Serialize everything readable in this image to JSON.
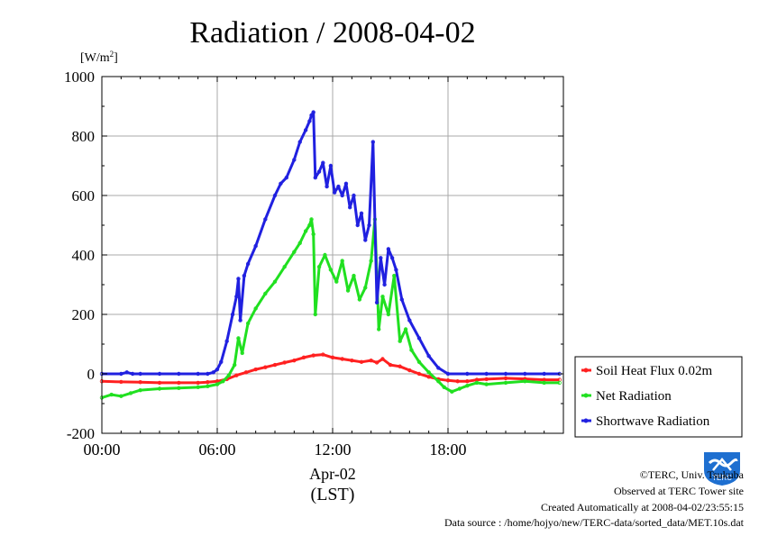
{
  "chart_data": {
    "type": "line",
    "title": "Radiation / 2008-04-02",
    "ylabel": "[W/m2]",
    "ylabel_text": "[W/m",
    "ylabel_sup": "2",
    "ylabel_close": "]",
    "ylim": [
      -200,
      1000
    ],
    "yticks": [
      "1000",
      "800",
      "600",
      "400",
      "200",
      "0",
      "-200"
    ],
    "xlim": [
      0,
      24
    ],
    "xticks": [
      "00:00",
      "06:00",
      "12:00",
      "18:00"
    ],
    "xlabel_date": "Apr-02",
    "xlabel_unit": "(LST)",
    "grid": true,
    "legend_position": "right",
    "series": [
      {
        "name": "Soil Heat Flux 0.02m",
        "color": "#ff2020",
        "x": [
          0,
          1,
          2,
          3,
          4,
          5,
          5.5,
          6,
          6.5,
          7,
          7.5,
          8,
          8.5,
          9,
          9.5,
          10,
          10.5,
          11,
          11.5,
          12,
          12.5,
          13,
          13.5,
          14,
          14.3,
          14.6,
          15,
          15.5,
          16,
          16.5,
          17,
          17.5,
          18,
          18.5,
          19,
          19.5,
          20,
          21,
          22,
          23,
          23.8
        ],
        "y": [
          -25,
          -27,
          -28,
          -30,
          -30,
          -30,
          -28,
          -25,
          -18,
          -5,
          5,
          15,
          22,
          30,
          38,
          45,
          55,
          62,
          65,
          55,
          50,
          45,
          40,
          45,
          38,
          50,
          30,
          25,
          12,
          0,
          -10,
          -18,
          -22,
          -25,
          -25,
          -20,
          -18,
          -15,
          -17,
          -20,
          -20
        ]
      },
      {
        "name": "Net Radiation",
        "color": "#20e020",
        "x": [
          0,
          0.5,
          1,
          1.5,
          2,
          3,
          4,
          5,
          5.5,
          6,
          6.3,
          6.6,
          6.9,
          7.1,
          7.3,
          7.6,
          8,
          8.5,
          9,
          9.5,
          10,
          10.3,
          10.6,
          10.8,
          10.9,
          11,
          11.1,
          11.3,
          11.6,
          11.9,
          12.2,
          12.5,
          12.8,
          13.1,
          13.4,
          13.7,
          14.0,
          14.2,
          14.4,
          14.6,
          14.9,
          15.2,
          15.5,
          15.8,
          16.1,
          16.5,
          17,
          17.5,
          17.8,
          18.2,
          18.6,
          19,
          19.5,
          20,
          21,
          22,
          23,
          23.8
        ],
        "y": [
          -80,
          -70,
          -75,
          -65,
          -55,
          -50,
          -48,
          -45,
          -42,
          -35,
          -25,
          -5,
          30,
          120,
          70,
          170,
          220,
          270,
          310,
          360,
          410,
          440,
          480,
          500,
          520,
          470,
          200,
          360,
          400,
          350,
          310,
          380,
          280,
          330,
          250,
          290,
          380,
          520,
          150,
          260,
          200,
          330,
          110,
          150,
          80,
          40,
          5,
          -25,
          -45,
          -60,
          -50,
          -40,
          -30,
          -35,
          -30,
          -25,
          -30,
          -30
        ]
      },
      {
        "name": "Shortwave Radiation",
        "color": "#2020e0",
        "x": [
          0,
          1,
          1.3,
          1.6,
          2,
          3,
          4,
          5,
          5.5,
          5.8,
          6.0,
          6.2,
          6.5,
          6.8,
          7.0,
          7.1,
          7.2,
          7.4,
          7.6,
          8,
          8.5,
          9,
          9.3,
          9.6,
          10,
          10.3,
          10.6,
          10.8,
          10.9,
          11,
          11.1,
          11.3,
          11.5,
          11.7,
          11.9,
          12.1,
          12.3,
          12.5,
          12.7,
          12.9,
          13.1,
          13.3,
          13.5,
          13.7,
          13.9,
          14.1,
          14.3,
          14.5,
          14.7,
          14.9,
          15.1,
          15.3,
          15.6,
          16,
          16.5,
          17,
          17.5,
          18,
          19,
          20,
          21,
          22,
          23,
          23.8
        ],
        "y": [
          0,
          0,
          5,
          0,
          0,
          0,
          0,
          0,
          0,
          5,
          15,
          40,
          110,
          200,
          260,
          320,
          180,
          330,
          370,
          430,
          520,
          600,
          640,
          660,
          720,
          780,
          820,
          850,
          870,
          880,
          660,
          680,
          710,
          630,
          700,
          610,
          630,
          600,
          640,
          560,
          600,
          500,
          540,
          450,
          500,
          780,
          240,
          390,
          300,
          420,
          390,
          350,
          250,
          180,
          120,
          60,
          20,
          0,
          0,
          0,
          0,
          0,
          0,
          0
        ]
      }
    ]
  },
  "footer": {
    "copyright": "©TERC, Univ. Tsukuba",
    "site": "Observed at TERC Tower site",
    "created": "Created Automatically at 2008-04-02/23:55:15",
    "source": "Data source : /home/hojyo/new/TERC-data/sorted_data/MET.10s.dat",
    "logo_text": "TERC"
  }
}
